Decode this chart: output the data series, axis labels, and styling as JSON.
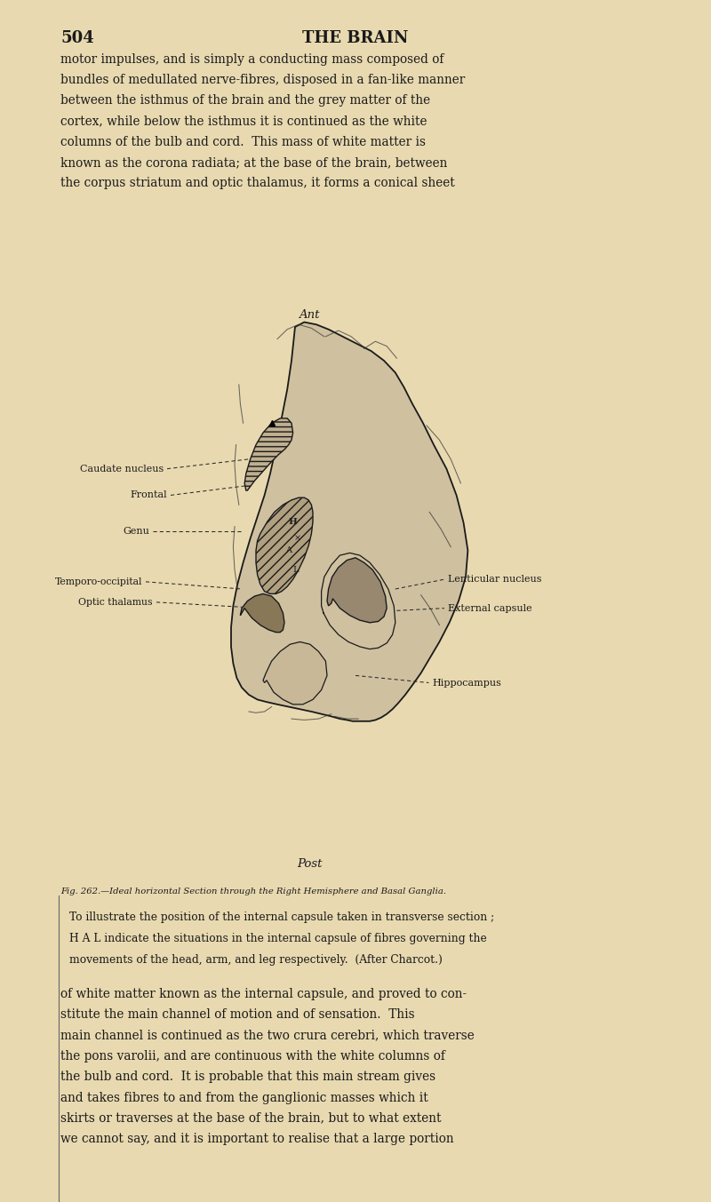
{
  "bg_color": "#e8d9b0",
  "page_number": "504",
  "page_title": "THE BRAIN",
  "top_paragraph_lines": [
    "motor impulses, and is simply a conducting mass composed of",
    "bundles of medullated nerve-fibres, disposed in a fan-like manner",
    "between the isthmus of the brain and the grey matter of the",
    "cortex, while below the isthmus it is continued as the white",
    "columns of the bulb and cord.  This mass of white matter is",
    "known as the corona radiata; at the base of the brain, between",
    "the corpus striatum and optic thalamus, it forms a conical sheet"
  ],
  "ant_label": "Ant",
  "post_label": "Post",
  "fig_caption_small": "Fig. 262.—Ideal horizontal Section through the Right Hemisphere and Basal Ganglia.",
  "fig_caption_body_lines": [
    "To illustrate the position of the internal capsule taken in transverse section ;",
    "H A L indicate the situations in the internal capsule of fibres governing the",
    "movements of the head, arm, and leg respectively.  (After Charcot.)"
  ],
  "bottom_paragraph_lines": [
    "of white matter known as the internal capsule, and proved to con-",
    "stitute the main channel of motion and of sensation.  This",
    "main channel is continued as the two crura cerebri, which traverse",
    "the pons varolii, and are continuous with the white columns of",
    "the bulb and cord.  It is probable that this main stream gives",
    "and takes fibres to and from the ganglionic masses which it",
    "skirts or traverses at the base of the brain, but to what extent",
    "we cannot say, and it is important to realise that a large portion"
  ],
  "text_color": "#1a1a1a",
  "line_color": "#2a2a2a",
  "bg_fill": "#ddd0a8",
  "outer_brain_color": "#cfc0a0",
  "inner_capsule_color": "#b0a080",
  "caudate_color": "#c0b090",
  "lenticular_color": "#988870",
  "thalamus_color": "#887858",
  "posterior_color": "#c8b898"
}
